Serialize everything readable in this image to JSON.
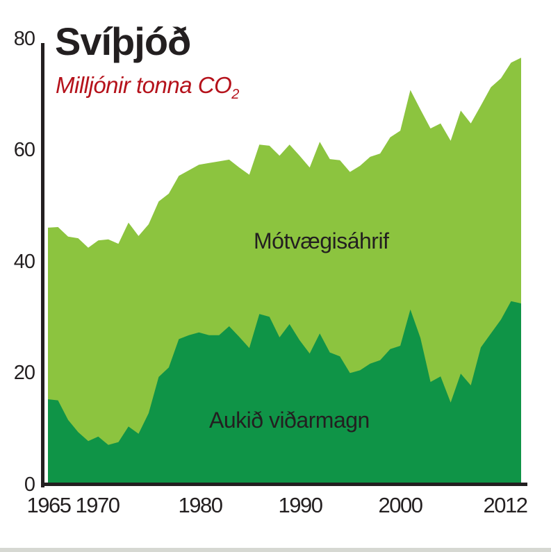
{
  "header": {
    "title": "Svíþjóð",
    "subtitle_main": "Milljónir tonna CO",
    "subtitle_sub": "2"
  },
  "axes": {
    "y_ticks": [
      "0",
      "20",
      "40",
      "60",
      "80"
    ],
    "x_ticks": [
      "1965",
      "1970",
      "1980",
      "1990",
      "2000",
      "2012"
    ]
  },
  "labels": {
    "upper_layer": "Mótvægisáhrif",
    "lower_layer": "Aukið viðarmagn"
  },
  "colors": {
    "upper_layer": "#8cc43f",
    "lower_layer": "#0f9447",
    "axis": "#231f20",
    "title": "#231f20",
    "subtitle": "#b5121b"
  },
  "chart_data": {
    "type": "area",
    "stacked": true,
    "title": "Svíþjóð",
    "subtitle": "Milljónir tonna CO2",
    "xlabel": "",
    "ylabel": "Milljónir tonna CO2",
    "ylim": [
      0,
      80
    ],
    "xlim": [
      1965,
      2012
    ],
    "y_ticks": [
      0,
      20,
      40,
      60,
      80
    ],
    "x_ticks": [
      1965,
      1970,
      1980,
      1990,
      2000,
      2012
    ],
    "grid": false,
    "legend": "inline labels inside areas",
    "x": [
      1965,
      1966,
      1967,
      1968,
      1969,
      1970,
      1971,
      1972,
      1973,
      1974,
      1975,
      1976,
      1977,
      1978,
      1979,
      1980,
      1981,
      1982,
      1983,
      1984,
      1985,
      1986,
      1987,
      1988,
      1989,
      1990,
      1991,
      1992,
      1993,
      1994,
      1995,
      1996,
      1997,
      1998,
      1999,
      2000,
      2001,
      2002,
      2003,
      2004,
      2005,
      2006,
      2007,
      2008,
      2009,
      2010,
      2011,
      2012
    ],
    "series": [
      {
        "name": "Aukið viðarmagn",
        "values": [
          15.2,
          15.0,
          11.5,
          9.3,
          7.7,
          8.5,
          7.0,
          7.5,
          10.3,
          9.0,
          12.7,
          19.2,
          20.9,
          26.0,
          26.7,
          27.2,
          26.7,
          26.7,
          28.3,
          26.4,
          24.4,
          30.5,
          30.0,
          26.3,
          28.7,
          25.8,
          23.4,
          27.0,
          23.6,
          22.9,
          19.9,
          20.4,
          21.6,
          22.2,
          24.2,
          24.8,
          31.3,
          26.2,
          18.3,
          19.3,
          14.6,
          19.8,
          17.7,
          24.5,
          27.0,
          29.5,
          32.8,
          32.4
        ]
      },
      {
        "name": "Mótvægisáhrif",
        "values": [
          30.8,
          31.1,
          32.9,
          34.8,
          34.7,
          35.2,
          36.9,
          35.6,
          36.6,
          35.5,
          33.9,
          31.5,
          31.2,
          29.3,
          29.6,
          30.1,
          30.9,
          31.2,
          29.9,
          30.4,
          31.1,
          30.4,
          30.7,
          32.6,
          32.2,
          33.1,
          33.4,
          34.4,
          34.7,
          35.2,
          36.1,
          36.7,
          37.1,
          37.1,
          38.0,
          38.6,
          39.4,
          41.0,
          45.5,
          45.4,
          47.0,
          47.2,
          47.0,
          43.4,
          44.2,
          43.3,
          42.8,
          44.1
        ]
      }
    ],
    "totals": [
      46.0,
      46.1,
      44.4,
      44.1,
      42.4,
      43.7,
      43.9,
      43.1,
      46.9,
      44.5,
      46.6,
      50.7,
      52.1,
      55.3,
      56.3,
      57.3,
      57.6,
      57.9,
      58.2,
      56.8,
      55.5,
      60.9,
      60.7,
      58.9,
      60.9,
      58.9,
      56.8,
      61.4,
      58.3,
      58.1,
      56.0,
      57.1,
      58.7,
      59.3,
      62.2,
      63.4,
      70.7,
      67.2,
      63.8,
      64.7,
      61.6,
      67.0,
      64.7,
      67.9,
      71.2,
      72.8,
      75.6,
      76.5
    ]
  }
}
